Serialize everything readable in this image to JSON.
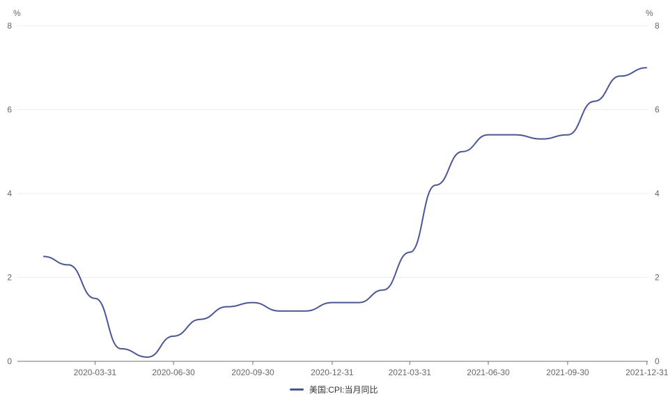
{
  "chart_data": {
    "type": "line",
    "left_unit": "%",
    "right_unit": "%",
    "ylim": [
      0,
      8
    ],
    "y_ticks": [
      "0",
      "2",
      "4",
      "6",
      "8"
    ],
    "x_tick_labels": [
      "2020-03-31",
      "2020-06-30",
      "2020-09-30",
      "2020-12-31",
      "2021-03-31",
      "2021-06-30",
      "2021-09-30",
      "2021-12-31"
    ],
    "x": [
      "2020-01-31",
      "2020-02-29",
      "2020-03-31",
      "2020-04-30",
      "2020-05-31",
      "2020-06-30",
      "2020-07-31",
      "2020-08-31",
      "2020-09-30",
      "2020-10-31",
      "2020-11-30",
      "2020-12-31",
      "2021-01-31",
      "2021-02-28",
      "2021-03-31",
      "2021-04-30",
      "2021-05-31",
      "2021-06-30",
      "2021-07-31",
      "2021-08-31",
      "2021-09-30",
      "2021-10-31",
      "2021-11-30",
      "2021-12-31"
    ],
    "series": [
      {
        "name": "美国:CPI:当月同比",
        "color": "#4a5694",
        "values": [
          2.5,
          2.3,
          1.5,
          0.3,
          0.1,
          0.6,
          1.0,
          1.3,
          1.4,
          1.2,
          1.2,
          1.4,
          1.4,
          1.7,
          2.6,
          4.2,
          5.0,
          5.4,
          5.4,
          5.3,
          5.4,
          6.2,
          6.8,
          7.0
        ]
      }
    ],
    "grid": true,
    "legend_position": "bottom-center"
  }
}
